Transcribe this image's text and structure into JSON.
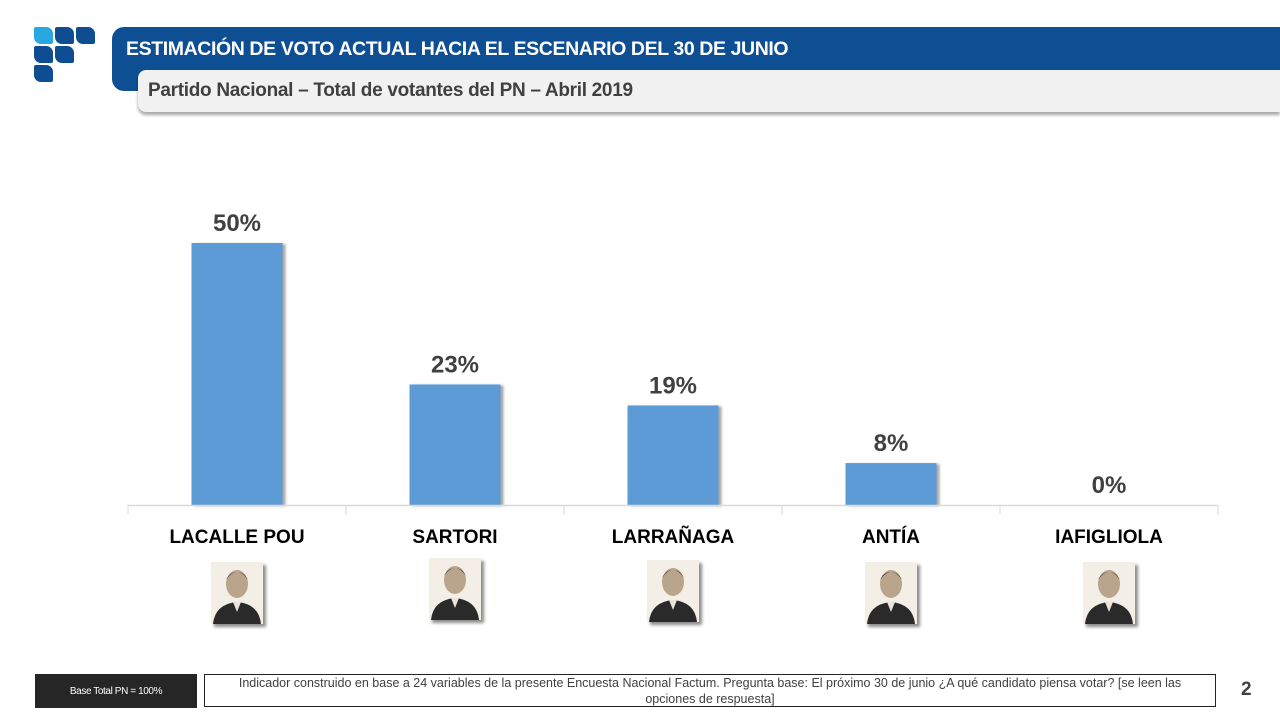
{
  "header": {
    "title": "ESTIMACIÓN DE VOTO ACTUAL HACIA EL ESCENARIO DEL 30 DE JUNIO",
    "subtitle": "Partido Nacional – Total de votantes del PN – Abril 2019",
    "brand_color": "#0e4f93",
    "logo_accent_color": "#29a8e0"
  },
  "chart_data": {
    "type": "bar",
    "title": "ESTIMACIÓN DE VOTO ACTUAL HACIA EL ESCENARIO DEL 30 DE JUNIO",
    "subtitle": "Partido Nacional – Total de votantes del PN – Abril 2019",
    "categories": [
      "LACALLE POU",
      "SARTORI",
      "LARRAÑAGA",
      "ANTÍA",
      "IAFIGLIOLA"
    ],
    "values": [
      50,
      23,
      19,
      8,
      0
    ],
    "value_labels": [
      "50%",
      "23%",
      "19%",
      "8%",
      "0%"
    ],
    "unit": "%",
    "xlabel": "",
    "ylabel": "",
    "ylim": [
      0,
      50
    ],
    "grid": false,
    "legend": "none",
    "bar_color": "#5b9bd5"
  },
  "candidates": [
    {
      "name": "LACALLE POU",
      "photo": "portrait-photo"
    },
    {
      "name": "SARTORI",
      "photo": "portrait-photo"
    },
    {
      "name": "LARRAÑAGA",
      "photo": "portrait-photo"
    },
    {
      "name": "ANTÍA",
      "photo": "portrait-photo"
    },
    {
      "name": "IAFIGLIOLA",
      "photo": "portrait-photo"
    }
  ],
  "footer": {
    "base": "Base Total PN = 100%",
    "note": "Indicador construido en base a 24 variables de la presente Encuesta Nacional Factum. Pregunta base: El próximo 30 de junio ¿A qué candidato piensa votar? [se leen las opciones de respuesta]",
    "page_number": "2"
  }
}
